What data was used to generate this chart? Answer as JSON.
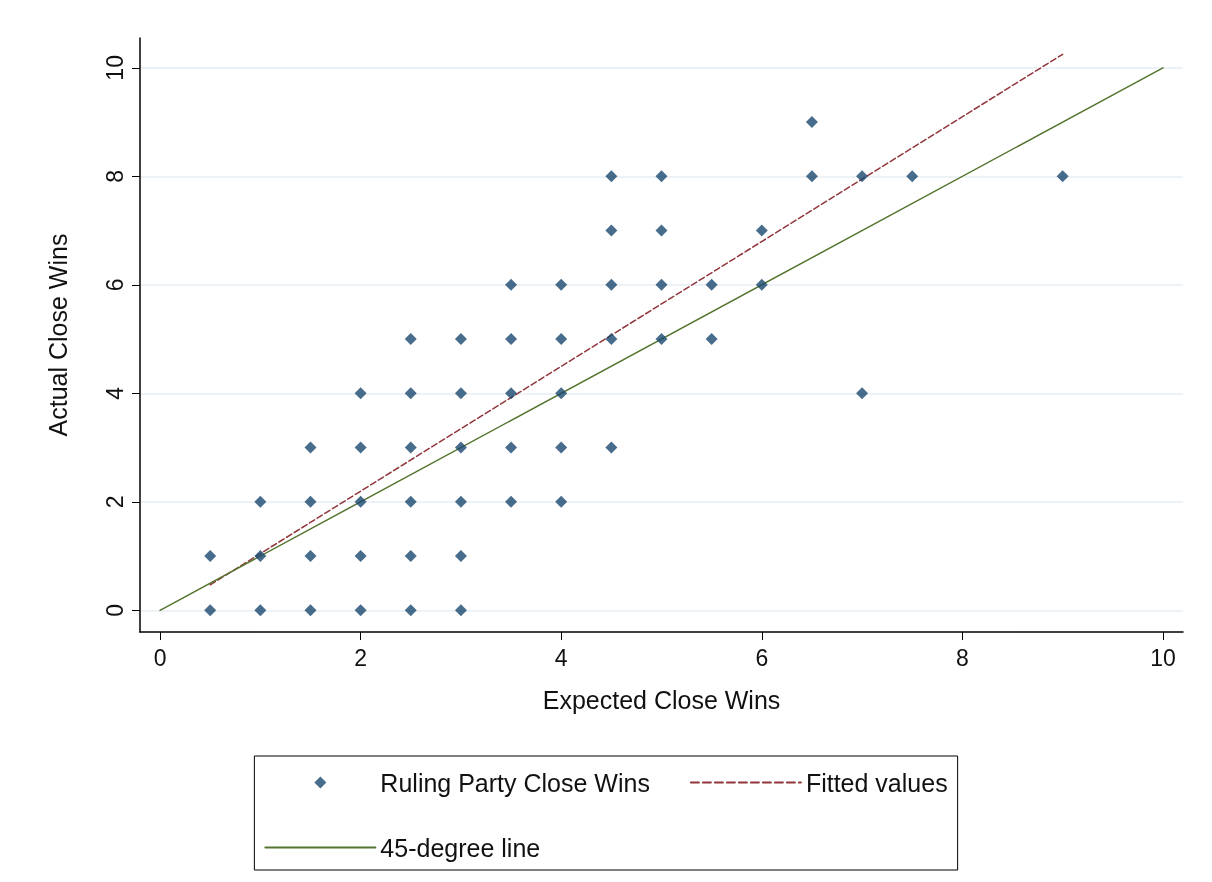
{
  "chart_data": {
    "type": "scatter",
    "xlabel": "Expected Close Wins",
    "ylabel": "Actual Close Wins",
    "xlim": [
      -0.2,
      10.2
    ],
    "ylim": [
      -0.4,
      10.55
    ],
    "xticks": [
      0,
      2,
      4,
      6,
      8,
      10
    ],
    "yticks": [
      0,
      2,
      4,
      6,
      8,
      10
    ],
    "grid": "y",
    "legend": "bottom",
    "series": [
      {
        "name": "Ruling Party Close Wins",
        "type": "scatter",
        "marker": "diamond",
        "color": "#1a476f",
        "x": [
          0.5,
          0.5,
          1,
          1,
          1,
          1.5,
          1.5,
          1.5,
          1.5,
          2,
          2,
          2,
          2,
          2,
          2.5,
          2.5,
          2.5,
          2.5,
          2.5,
          2.5,
          3,
          3,
          3,
          3,
          3,
          3,
          3.5,
          3.5,
          3.5,
          3.5,
          3.5,
          4,
          4,
          4,
          4,
          4,
          4.5,
          4.5,
          4.5,
          4.5,
          4.5,
          5,
          5,
          5,
          5,
          5.5,
          5.5,
          6,
          6,
          6.5,
          6.5,
          7,
          7,
          7.5,
          9
        ],
        "values": [
          0,
          1,
          0,
          1,
          2,
          0,
          1,
          2,
          3,
          0,
          1,
          2,
          3,
          4,
          0,
          1,
          2,
          3,
          4,
          5,
          0,
          1,
          2,
          3,
          4,
          5,
          2,
          3,
          4,
          5,
          6,
          2,
          3,
          4,
          5,
          6,
          3,
          5,
          6,
          7,
          8,
          5,
          6,
          7,
          8,
          5,
          6,
          6,
          7,
          8,
          9,
          4,
          8,
          8,
          8
        ]
      },
      {
        "name": "Fitted values",
        "type": "line",
        "marker": "none",
        "line_style": "dashed",
        "color": "#90353b",
        "x": [
          0.5,
          9
        ],
        "values": [
          0.47,
          10.25
        ]
      },
      {
        "name": "45-degree line",
        "type": "line",
        "marker": "none",
        "line_style": "solid",
        "color": "#55752f",
        "x": [
          0,
          10
        ],
        "values": [
          0,
          10
        ]
      }
    ]
  }
}
